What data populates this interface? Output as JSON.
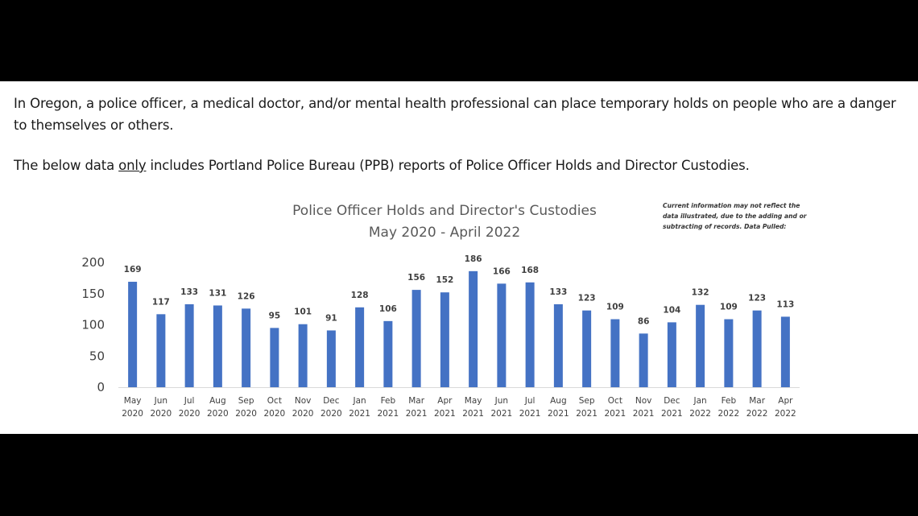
{
  "intro": {
    "paragraph1": "In Oregon, a police officer, a medical doctor, and/or mental health professional can place temporary holds on people who are a danger to themselves or others.",
    "paragraph2_before": "The below data ",
    "paragraph2_emphasis": "only",
    "paragraph2_after": " includes Portland Police Bureau (PPB) reports of Police Officer Holds and Director Custodies."
  },
  "chart_data": {
    "type": "bar",
    "title": "Police Officer Holds and Director's Custodies",
    "subtitle": "May 2020 - April 2022",
    "note_lines": [
      "Current information may not reflect the",
      "data illustrated, due to the adding and or",
      "subtracting of records. Data Pulled:"
    ],
    "categories": [
      [
        "May",
        "2020"
      ],
      [
        "Jun",
        "2020"
      ],
      [
        "Jul",
        "2020"
      ],
      [
        "Aug",
        "2020"
      ],
      [
        "Sep",
        "2020"
      ],
      [
        "Oct",
        "2020"
      ],
      [
        "Nov",
        "2020"
      ],
      [
        "Dec",
        "2020"
      ],
      [
        "Jan",
        "2021"
      ],
      [
        "Feb",
        "2021"
      ],
      [
        "Mar",
        "2021"
      ],
      [
        "Apr",
        "2021"
      ],
      [
        "May",
        "2021"
      ],
      [
        "Jun",
        "2021"
      ],
      [
        "Jul",
        "2021"
      ],
      [
        "Aug",
        "2021"
      ],
      [
        "Sep",
        "2021"
      ],
      [
        "Oct",
        "2021"
      ],
      [
        "Nov",
        "2021"
      ],
      [
        "Dec",
        "2021"
      ],
      [
        "Jan",
        "2022"
      ],
      [
        "Feb",
        "2022"
      ],
      [
        "Mar",
        "2022"
      ],
      [
        "Apr",
        "2022"
      ]
    ],
    "values": [
      169,
      117,
      133,
      131,
      126,
      95,
      101,
      91,
      128,
      106,
      156,
      152,
      186,
      166,
      168,
      133,
      123,
      109,
      86,
      104,
      132,
      109,
      123,
      113
    ],
    "ylim": [
      0,
      200
    ],
    "yticks": [
      0,
      50,
      100,
      150,
      200
    ],
    "xlabel": "",
    "ylabel": "",
    "grid": false,
    "legend": "none",
    "bar_color": "#4472c4"
  }
}
